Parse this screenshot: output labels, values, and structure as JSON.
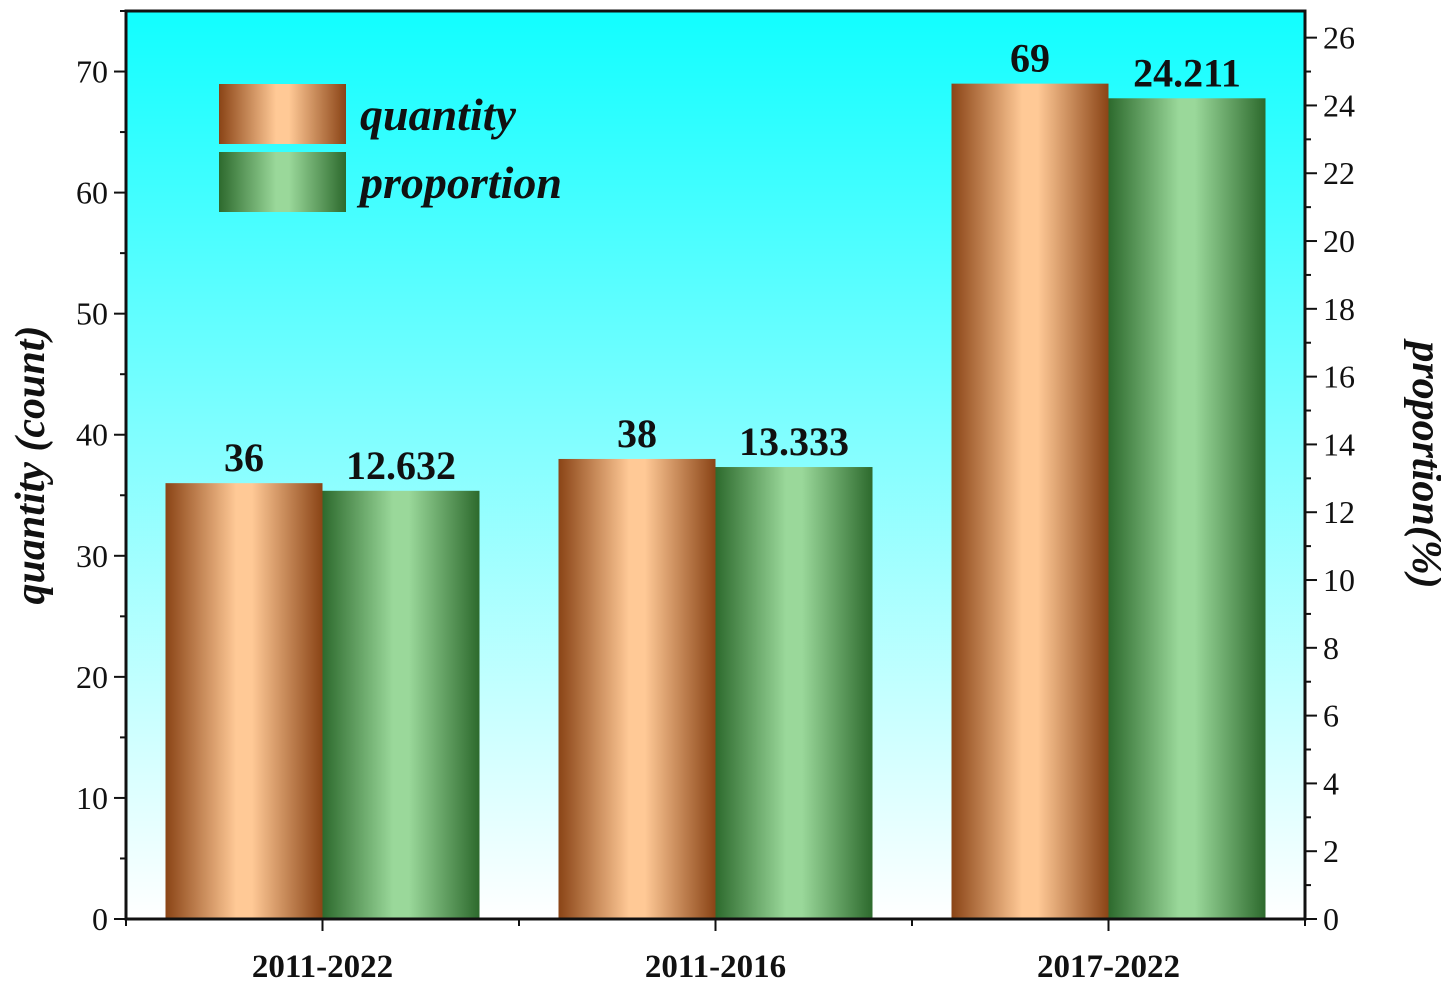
{
  "chart_data": {
    "type": "bar",
    "title": "",
    "categories": [
      "2011-2022",
      "2011-2016",
      "2017-2022"
    ],
    "series": [
      {
        "name": "quantity",
        "axis": "left",
        "values": [
          36,
          38,
          69
        ],
        "labels": [
          "36",
          "38",
          "69"
        ],
        "color_dark": "#8a4416",
        "color_light": "#ffc996"
      },
      {
        "name": "proportion",
        "axis": "right",
        "values": [
          12.632,
          13.333,
          24.211
        ],
        "labels": [
          "12.632",
          "13.333",
          "24.211"
        ],
        "color_dark": "#2d6a2d",
        "color_light": "#9ad89a"
      }
    ],
    "ylabel": "quantity (count)",
    "ylim": [
      0,
      75
    ],
    "yticks": [
      0,
      10,
      20,
      30,
      40,
      50,
      60,
      70
    ],
    "y2label": "proportion(%)",
    "y2lim": [
      0,
      26.786
    ],
    "y2ticks": [
      0,
      2,
      4,
      6,
      8,
      10,
      12,
      14,
      16,
      18,
      20,
      22,
      24,
      26
    ],
    "legend_position": "top-left",
    "grid": false,
    "background_gradient": [
      "#11feff",
      "#ffffff"
    ]
  }
}
